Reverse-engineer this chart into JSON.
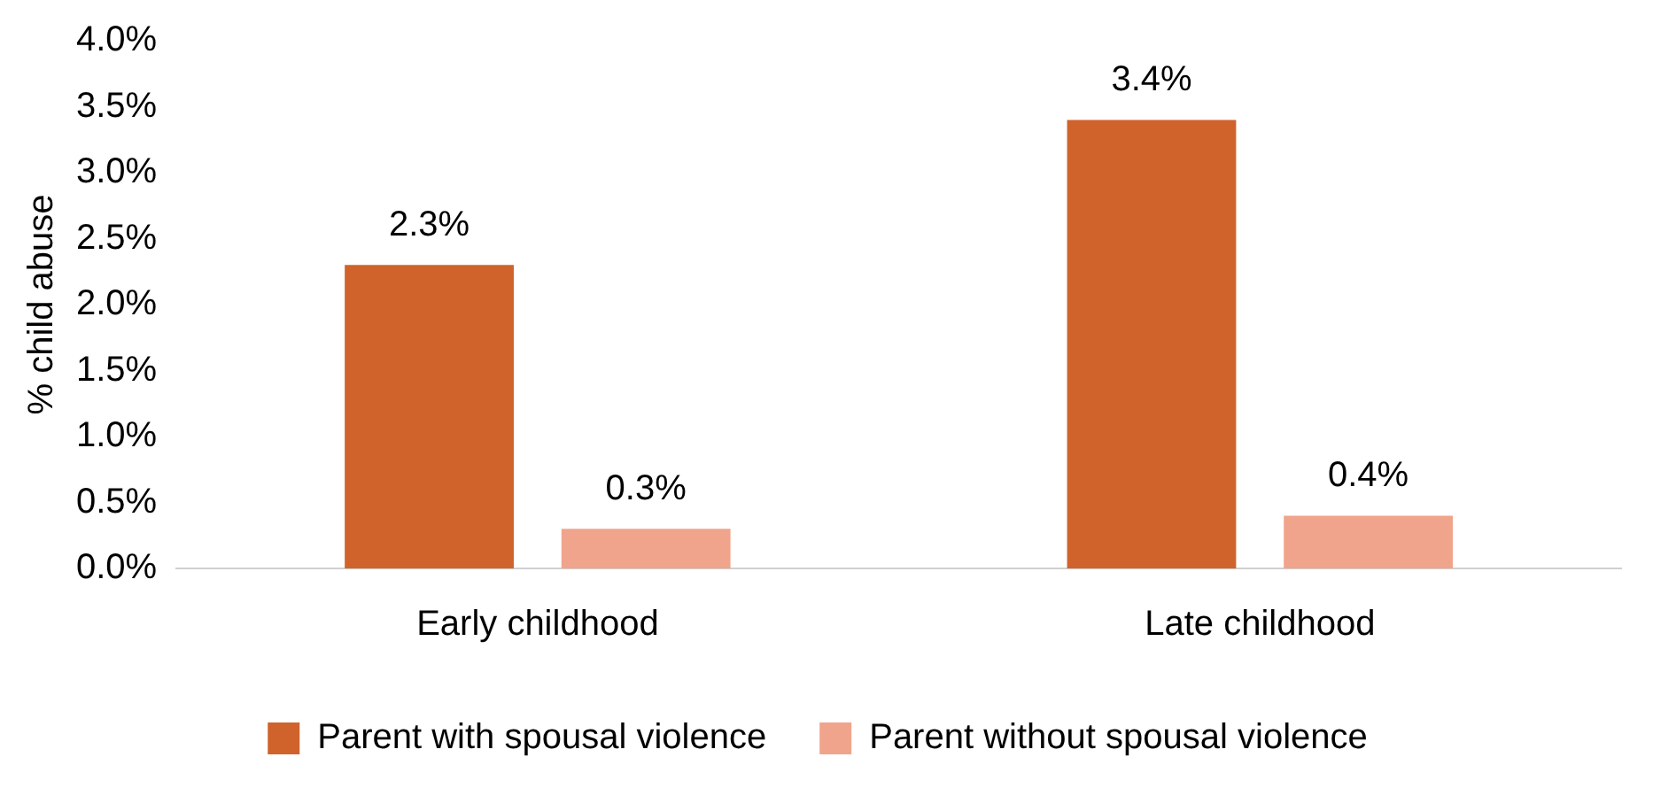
{
  "chart_data": {
    "type": "bar",
    "ylabel": "% child abuse",
    "categories": [
      "Early childhood",
      "Late childhood"
    ],
    "series": [
      {
        "name": "Parent with spousal violence",
        "color": "#d0632b",
        "values": [
          2.3,
          3.4
        ],
        "value_labels": [
          "2.3%",
          "3.4%"
        ]
      },
      {
        "name": "Parent without spousal violence",
        "color": "#f0a48c",
        "values": [
          0.3,
          0.4
        ],
        "value_labels": [
          "0.3%",
          "0.4%"
        ]
      }
    ],
    "ylim": [
      0,
      4
    ],
    "yticks": [
      {
        "value": 0,
        "label": "0.0%"
      },
      {
        "value": 0.5,
        "label": "0.5%"
      },
      {
        "value": 1,
        "label": "1.0%"
      },
      {
        "value": 1.5,
        "label": "1.5%"
      },
      {
        "value": 2,
        "label": "2.0%"
      },
      {
        "value": 2.5,
        "label": "2.5%"
      },
      {
        "value": 3,
        "label": "3.0%"
      },
      {
        "value": 3.5,
        "label": "3.5%"
      },
      {
        "value": 4,
        "label": "4.0%"
      }
    ],
    "grid": false,
    "legend": "bottom"
  }
}
